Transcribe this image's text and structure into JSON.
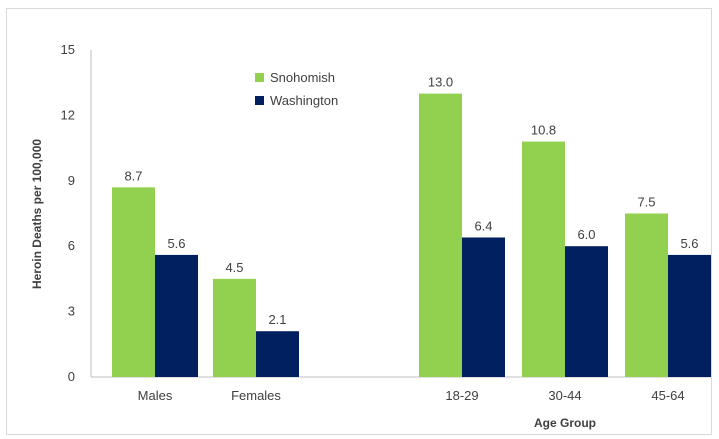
{
  "chart_data": {
    "type": "bar",
    "title": "",
    "ylabel": "Heroin Deaths per 100,000",
    "xlabel": "Age Group",
    "ylim": [
      0,
      15
    ],
    "yticks": [
      0,
      3,
      6,
      9,
      12,
      15
    ],
    "grid": false,
    "legend_position": "top-left",
    "categories": [
      "Males",
      "Females",
      "18-29",
      "30-44",
      "45-64"
    ],
    "series": [
      {
        "name": "Snohomish",
        "color": "#92d050",
        "values": [
          8.7,
          4.5,
          13.0,
          10.8,
          7.5
        ],
        "labels": [
          "8.7",
          "4.5",
          "13.0",
          "10.8",
          "7.5"
        ]
      },
      {
        "name": "Washington",
        "color": "#002060",
        "values": [
          5.6,
          2.1,
          6.4,
          6.0,
          5.6
        ],
        "labels": [
          "5.6",
          "2.1",
          "6.4",
          "6.0",
          "5.6"
        ]
      }
    ]
  }
}
